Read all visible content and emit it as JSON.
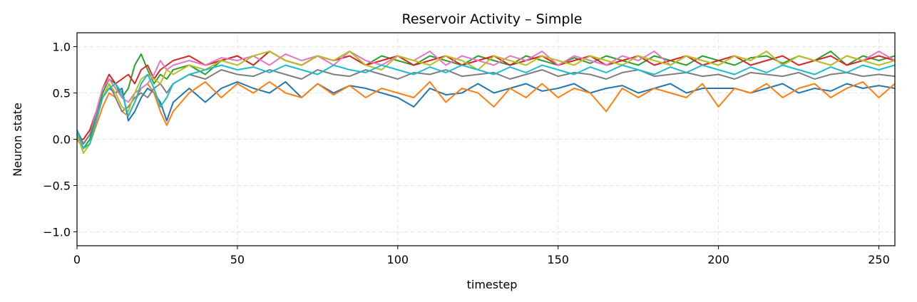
{
  "chart_data": {
    "type": "line",
    "title": "Reservoir Activity – Simple",
    "xlabel": "timestep",
    "ylabel": "Neuron state",
    "xlim": [
      0,
      255
    ],
    "ylim": [
      -1.15,
      1.15
    ],
    "xticks": [
      0,
      50,
      100,
      150,
      200,
      250
    ],
    "yticks": [
      -1.0,
      -0.5,
      0.0,
      0.5,
      1.0
    ],
    "ytick_labels": [
      "−1.0",
      "−0.5",
      "0.0",
      "0.5",
      "1.0"
    ],
    "grid": true,
    "legend": "none",
    "series": [
      {
        "color": "#1f77b4",
        "x": [
          0,
          2,
          4,
          6,
          8,
          10,
          12,
          14,
          16,
          18,
          20,
          22,
          24,
          26,
          28,
          30,
          35,
          40,
          45,
          50,
          55,
          60,
          65,
          70,
          75,
          80,
          85,
          90,
          95,
          100,
          105,
          110,
          115,
          120,
          125,
          130,
          135,
          140,
          145,
          150,
          155,
          160,
          165,
          170,
          175,
          180,
          185,
          190,
          195,
          200,
          205,
          210,
          215,
          220,
          225,
          230,
          235,
          240,
          245,
          250,
          255
        ],
        "y": [
          0.1,
          -0.05,
          0.05,
          0.25,
          0.45,
          0.55,
          0.5,
          0.55,
          0.2,
          0.3,
          0.45,
          0.55,
          0.5,
          0.4,
          0.2,
          0.4,
          0.55,
          0.4,
          0.55,
          0.62,
          0.55,
          0.5,
          0.62,
          0.45,
          0.6,
          0.5,
          0.58,
          0.55,
          0.5,
          0.45,
          0.35,
          0.55,
          0.48,
          0.5,
          0.6,
          0.5,
          0.55,
          0.6,
          0.52,
          0.55,
          0.6,
          0.5,
          0.55,
          0.58,
          0.5,
          0.55,
          0.6,
          0.5,
          0.55,
          0.55,
          0.55,
          0.5,
          0.55,
          0.6,
          0.5,
          0.55,
          0.52,
          0.6,
          0.55,
          0.58,
          0.55
        ]
      },
      {
        "color": "#ff7f0e",
        "x": [
          0,
          2,
          4,
          6,
          8,
          10,
          12,
          14,
          16,
          18,
          20,
          22,
          24,
          26,
          28,
          30,
          35,
          40,
          45,
          50,
          55,
          60,
          65,
          70,
          75,
          80,
          85,
          90,
          95,
          100,
          105,
          110,
          115,
          120,
          125,
          130,
          135,
          140,
          145,
          150,
          155,
          160,
          165,
          170,
          175,
          180,
          185,
          190,
          195,
          200,
          205,
          210,
          215,
          220,
          225,
          230,
          235,
          240,
          245,
          250,
          255
        ],
        "y": [
          0.0,
          -0.1,
          -0.05,
          0.15,
          0.35,
          0.5,
          0.45,
          0.3,
          0.25,
          0.4,
          0.55,
          0.6,
          0.5,
          0.3,
          0.15,
          0.3,
          0.5,
          0.62,
          0.45,
          0.6,
          0.5,
          0.62,
          0.5,
          0.45,
          0.6,
          0.48,
          0.58,
          0.45,
          0.55,
          0.5,
          0.45,
          0.62,
          0.4,
          0.55,
          0.5,
          0.35,
          0.55,
          0.45,
          0.6,
          0.45,
          0.55,
          0.5,
          0.3,
          0.55,
          0.45,
          0.55,
          0.5,
          0.45,
          0.6,
          0.35,
          0.55,
          0.5,
          0.6,
          0.45,
          0.55,
          0.6,
          0.45,
          0.55,
          0.62,
          0.45,
          0.6
        ]
      },
      {
        "color": "#2ca02c",
        "x": [
          0,
          2,
          4,
          6,
          8,
          10,
          12,
          14,
          16,
          18,
          20,
          22,
          24,
          26,
          28,
          30,
          35,
          40,
          45,
          50,
          55,
          60,
          65,
          70,
          75,
          80,
          85,
          90,
          95,
          100,
          105,
          110,
          115,
          120,
          125,
          130,
          135,
          140,
          145,
          150,
          155,
          160,
          165,
          170,
          175,
          180,
          185,
          190,
          195,
          200,
          205,
          210,
          215,
          220,
          225,
          230,
          235,
          240,
          245,
          250,
          255
        ],
        "y": [
          0.05,
          -0.1,
          0.0,
          0.25,
          0.5,
          0.65,
          0.6,
          0.45,
          0.55,
          0.8,
          0.92,
          0.75,
          0.6,
          0.7,
          0.65,
          0.75,
          0.8,
          0.7,
          0.85,
          0.9,
          0.8,
          0.95,
          0.85,
          0.8,
          0.9,
          0.85,
          0.95,
          0.8,
          0.9,
          0.85,
          0.8,
          0.9,
          0.85,
          0.8,
          0.9,
          0.85,
          0.8,
          0.9,
          0.85,
          0.8,
          0.88,
          0.82,
          0.9,
          0.85,
          0.8,
          0.9,
          0.85,
          0.8,
          0.9,
          0.85,
          0.8,
          0.88,
          0.9,
          0.82,
          0.9,
          0.85,
          0.95,
          0.8,
          0.9,
          0.85,
          0.9
        ]
      },
      {
        "color": "#d62728",
        "x": [
          0,
          2,
          4,
          6,
          8,
          10,
          12,
          14,
          16,
          18,
          20,
          22,
          24,
          26,
          28,
          30,
          35,
          40,
          45,
          50,
          55,
          60,
          65,
          70,
          75,
          80,
          85,
          90,
          95,
          100,
          105,
          110,
          115,
          120,
          125,
          130,
          135,
          140,
          145,
          150,
          155,
          160,
          165,
          170,
          175,
          180,
          185,
          190,
          195,
          200,
          205,
          210,
          215,
          220,
          225,
          230,
          235,
          240,
          245,
          250,
          255
        ],
        "y": [
          0.0,
          0.0,
          0.1,
          0.3,
          0.55,
          0.7,
          0.6,
          0.65,
          0.7,
          0.6,
          0.75,
          0.8,
          0.65,
          0.75,
          0.8,
          0.85,
          0.9,
          0.8,
          0.85,
          0.9,
          0.8,
          0.95,
          0.85,
          0.8,
          0.9,
          0.85,
          0.9,
          0.8,
          0.85,
          0.9,
          0.8,
          0.85,
          0.9,
          0.8,
          0.85,
          0.9,
          0.8,
          0.85,
          0.9,
          0.8,
          0.85,
          0.9,
          0.8,
          0.85,
          0.9,
          0.8,
          0.85,
          0.9,
          0.8,
          0.85,
          0.9,
          0.8,
          0.85,
          0.9,
          0.8,
          0.85,
          0.9,
          0.8,
          0.85,
          0.9,
          0.85
        ]
      },
      {
        "color": "#e377c2",
        "x": [
          0,
          2,
          4,
          6,
          8,
          10,
          12,
          14,
          16,
          18,
          20,
          22,
          24,
          26,
          28,
          30,
          35,
          40,
          45,
          50,
          55,
          60,
          65,
          70,
          75,
          80,
          85,
          90,
          95,
          100,
          105,
          110,
          115,
          120,
          125,
          130,
          135,
          140,
          145,
          150,
          155,
          160,
          165,
          170,
          175,
          180,
          185,
          190,
          195,
          200,
          205,
          210,
          215,
          220,
          225,
          230,
          235,
          240,
          245,
          250,
          255
        ],
        "y": [
          0.0,
          -0.05,
          0.05,
          0.3,
          0.55,
          0.65,
          0.55,
          0.45,
          0.4,
          0.5,
          0.55,
          0.6,
          0.7,
          0.85,
          0.75,
          0.8,
          0.85,
          0.8,
          0.88,
          0.85,
          0.9,
          0.8,
          0.92,
          0.85,
          0.9,
          0.8,
          0.95,
          0.85,
          0.8,
          0.9,
          0.85,
          0.95,
          0.8,
          0.9,
          0.85,
          0.8,
          0.9,
          0.85,
          0.95,
          0.8,
          0.9,
          0.85,
          0.8,
          0.9,
          0.85,
          0.95,
          0.8,
          0.9,
          0.85,
          0.8,
          0.9,
          0.85,
          0.95,
          0.8,
          0.9,
          0.85,
          0.8,
          0.9,
          0.85,
          0.95,
          0.85
        ]
      },
      {
        "color": "#7f7f7f",
        "x": [
          0,
          2,
          4,
          6,
          8,
          10,
          12,
          14,
          16,
          18,
          20,
          22,
          24,
          26,
          28,
          30,
          35,
          40,
          45,
          50,
          55,
          60,
          65,
          70,
          75,
          80,
          85,
          90,
          95,
          100,
          105,
          110,
          115,
          120,
          125,
          130,
          135,
          140,
          145,
          150,
          155,
          160,
          165,
          170,
          175,
          180,
          185,
          190,
          195,
          200,
          205,
          210,
          215,
          220,
          225,
          230,
          235,
          240,
          245,
          250,
          255
        ],
        "y": [
          0.05,
          -0.05,
          0.05,
          0.25,
          0.45,
          0.6,
          0.45,
          0.3,
          0.35,
          0.45,
          0.5,
          0.45,
          0.55,
          0.6,
          0.5,
          0.6,
          0.7,
          0.65,
          0.75,
          0.7,
          0.68,
          0.75,
          0.7,
          0.65,
          0.75,
          0.7,
          0.68,
          0.75,
          0.7,
          0.65,
          0.72,
          0.7,
          0.75,
          0.68,
          0.7,
          0.72,
          0.65,
          0.7,
          0.75,
          0.68,
          0.72,
          0.7,
          0.65,
          0.72,
          0.75,
          0.68,
          0.7,
          0.72,
          0.68,
          0.7,
          0.65,
          0.72,
          0.7,
          0.68,
          0.72,
          0.65,
          0.7,
          0.72,
          0.68,
          0.7,
          0.68
        ]
      },
      {
        "color": "#bcbd22",
        "x": [
          0,
          2,
          4,
          6,
          8,
          10,
          12,
          14,
          16,
          18,
          20,
          22,
          24,
          26,
          28,
          30,
          35,
          40,
          45,
          50,
          55,
          60,
          65,
          70,
          75,
          80,
          85,
          90,
          95,
          100,
          105,
          110,
          115,
          120,
          125,
          130,
          135,
          140,
          145,
          150,
          155,
          160,
          165,
          170,
          175,
          180,
          185,
          190,
          195,
          200,
          205,
          210,
          215,
          220,
          225,
          230,
          235,
          240,
          245,
          250,
          255
        ],
        "y": [
          0.05,
          -0.15,
          -0.05,
          0.2,
          0.45,
          0.6,
          0.5,
          0.35,
          0.3,
          0.5,
          0.65,
          0.7,
          0.65,
          0.6,
          0.75,
          0.7,
          0.8,
          0.75,
          0.85,
          0.8,
          0.9,
          0.95,
          0.85,
          0.8,
          0.9,
          0.85,
          0.95,
          0.8,
          0.75,
          0.9,
          0.85,
          0.8,
          0.9,
          0.85,
          0.75,
          0.9,
          0.85,
          0.8,
          0.9,
          0.85,
          0.8,
          0.9,
          0.85,
          0.8,
          0.9,
          0.85,
          0.8,
          0.9,
          0.85,
          0.8,
          0.9,
          0.85,
          0.95,
          0.8,
          0.9,
          0.85,
          0.8,
          0.9,
          0.85,
          0.8,
          0.85
        ]
      },
      {
        "color": "#17becf",
        "x": [
          0,
          2,
          4,
          6,
          8,
          10,
          12,
          14,
          16,
          18,
          20,
          22,
          24,
          26,
          28,
          30,
          35,
          40,
          45,
          50,
          55,
          60,
          65,
          70,
          75,
          80,
          85,
          90,
          95,
          100,
          105,
          110,
          115,
          120,
          125,
          130,
          135,
          140,
          145,
          150,
          155,
          160,
          165,
          170,
          175,
          180,
          185,
          190,
          195,
          200,
          205,
          210,
          215,
          220,
          225,
          230,
          235,
          240,
          245,
          250,
          255
        ],
        "y": [
          0.1,
          -0.1,
          -0.05,
          0.2,
          0.45,
          0.55,
          0.6,
          0.5,
          0.25,
          0.4,
          0.6,
          0.7,
          0.55,
          0.35,
          0.45,
          0.6,
          0.7,
          0.75,
          0.8,
          0.75,
          0.78,
          0.72,
          0.8,
          0.75,
          0.7,
          0.8,
          0.75,
          0.72,
          0.8,
          0.75,
          0.7,
          0.78,
          0.72,
          0.8,
          0.75,
          0.7,
          0.78,
          0.72,
          0.8,
          0.75,
          0.7,
          0.78,
          0.72,
          0.8,
          0.75,
          0.7,
          0.78,
          0.72,
          0.8,
          0.75,
          0.7,
          0.78,
          0.72,
          0.8,
          0.75,
          0.7,
          0.78,
          0.72,
          0.8,
          0.75,
          0.8
        ]
      }
    ]
  }
}
